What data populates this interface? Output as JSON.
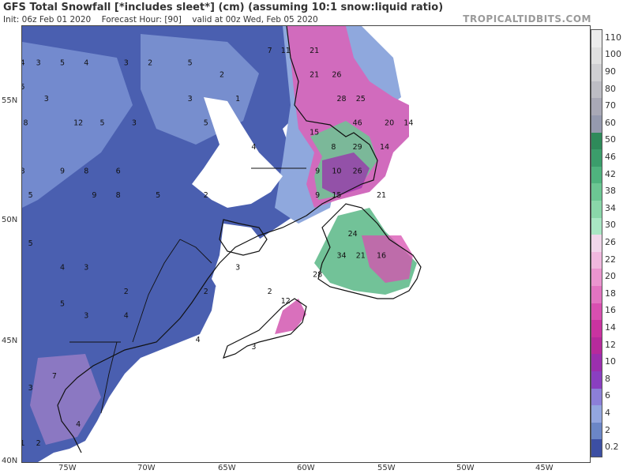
{
  "header": {
    "title": "GFS Total Snowfall [*includes sleet*] (cm) (assuming 10:1 snow:liquid ratio)",
    "init": "Init: 06z Feb 01 2020",
    "forecast_hour": "Forecast Hour: [90]",
    "valid": "valid at 00z Wed, Feb 05 2020",
    "brand": "TROPICALTIDBITS.COM"
  },
  "axes": {
    "lat_labels": [
      "55N",
      "50N",
      "45N",
      "40N"
    ],
    "lon_labels": [
      "75W",
      "70W",
      "65W",
      "60W",
      "55W",
      "50W",
      "45W"
    ]
  },
  "colorbar": {
    "labels": [
      "110",
      "100",
      "90",
      "80",
      "70",
      "60",
      "50",
      "46",
      "42",
      "38",
      "34",
      "30",
      "26",
      "22",
      "20",
      "18",
      "16",
      "14",
      "12",
      "10",
      "8",
      "6",
      "4",
      "2",
      "0.2"
    ],
    "colors": [
      "#ececec",
      "#e0e0e0",
      "#cfcfd2",
      "#bdbdc4",
      "#a9a9b6",
      "#959aae",
      "#2e8a5a",
      "#3b9d6b",
      "#4fb37e",
      "#6cc693",
      "#8ad6a9",
      "#a9e6c3",
      "#f1d6ea",
      "#f0b8de",
      "#ea95cf",
      "#e274c1",
      "#d84fb0",
      "#c933a0",
      "#b62a9c",
      "#9b2fae",
      "#8a3fc0",
      "#8c7fd8",
      "#93a6df",
      "#6b86c6",
      "#3c4fa3"
    ]
  },
  "map_numbers": [
    {
      "v": "4",
      "lon": -77.5,
      "lat": 56.5
    },
    {
      "v": "3",
      "lon": -76.5,
      "lat": 56.5
    },
    {
      "v": "5",
      "lon": -75,
      "lat": 56.5
    },
    {
      "v": "4",
      "lon": -73.5,
      "lat": 56.5
    },
    {
      "v": "3",
      "lon": -71,
      "lat": 56.5
    },
    {
      "v": "2",
      "lon": -69.5,
      "lat": 56.5
    },
    {
      "v": "5",
      "lon": -67,
      "lat": 56.5
    },
    {
      "v": "2",
      "lon": -65,
      "lat": 56
    },
    {
      "v": "7",
      "lon": -62,
      "lat": 57
    },
    {
      "v": "11",
      "lon": -61,
      "lat": 57
    },
    {
      "v": "21",
      "lon": -59.2,
      "lat": 57
    },
    {
      "v": "21",
      "lon": -59.2,
      "lat": 56
    },
    {
      "v": "26",
      "lon": -57.8,
      "lat": 56
    },
    {
      "v": "28",
      "lon": -57.5,
      "lat": 55
    },
    {
      "v": "25",
      "lon": -56.3,
      "lat": 55
    },
    {
      "v": "46",
      "lon": -56.5,
      "lat": 54
    },
    {
      "v": "20",
      "lon": -54.5,
      "lat": 54
    },
    {
      "v": "14",
      "lon": -53.3,
      "lat": 54
    },
    {
      "v": "15",
      "lon": -59.2,
      "lat": 53.6
    },
    {
      "v": "29",
      "lon": -56.5,
      "lat": 53
    },
    {
      "v": "14",
      "lon": -54.8,
      "lat": 53
    },
    {
      "v": "8",
      "lon": -58,
      "lat": 53
    },
    {
      "v": "9",
      "lon": -59,
      "lat": 52
    },
    {
      "v": "10",
      "lon": -57.8,
      "lat": 52
    },
    {
      "v": "26",
      "lon": -56.5,
      "lat": 52
    },
    {
      "v": "9",
      "lon": -59,
      "lat": 51
    },
    {
      "v": "15",
      "lon": -57.8,
      "lat": 51
    },
    {
      "v": "21",
      "lon": -55,
      "lat": 51
    },
    {
      "v": "24",
      "lon": -56.8,
      "lat": 49.4
    },
    {
      "v": "34",
      "lon": -57.5,
      "lat": 48.5
    },
    {
      "v": "21",
      "lon": -56.3,
      "lat": 48.5
    },
    {
      "v": "16",
      "lon": -55,
      "lat": 48.5
    },
    {
      "v": "28",
      "lon": -59,
      "lat": 47.7
    },
    {
      "v": "5",
      "lon": -77.5,
      "lat": 55.5
    },
    {
      "v": "3",
      "lon": -76,
      "lat": 55
    },
    {
      "v": "12",
      "lon": -74,
      "lat": 54
    },
    {
      "v": "5",
      "lon": -72.5,
      "lat": 54
    },
    {
      "v": "3",
      "lon": -70.5,
      "lat": 54
    },
    {
      "v": "8",
      "lon": -77.3,
      "lat": 54
    },
    {
      "v": "8",
      "lon": -77.5,
      "lat": 52
    },
    {
      "v": "9",
      "lon": -75,
      "lat": 52
    },
    {
      "v": "8",
      "lon": -73.5,
      "lat": 52
    },
    {
      "v": "6",
      "lon": -71.5,
      "lat": 52
    },
    {
      "v": "5",
      "lon": -77,
      "lat": 51
    },
    {
      "v": "9",
      "lon": -73,
      "lat": 51
    },
    {
      "v": "8",
      "lon": -71.5,
      "lat": 51
    },
    {
      "v": "5",
      "lon": -69,
      "lat": 51
    },
    {
      "v": "5",
      "lon": -77,
      "lat": 49
    },
    {
      "v": "4",
      "lon": -75,
      "lat": 48
    },
    {
      "v": "3",
      "lon": -73.5,
      "lat": 48
    },
    {
      "v": "2",
      "lon": -71,
      "lat": 47
    },
    {
      "v": "5",
      "lon": -75,
      "lat": 46.5
    },
    {
      "v": "3",
      "lon": -73.5,
      "lat": 46
    },
    {
      "v": "4",
      "lon": -71,
      "lat": 46
    },
    {
      "v": "7",
      "lon": -75.5,
      "lat": 43.5
    },
    {
      "v": "3",
      "lon": -77,
      "lat": 43
    },
    {
      "v": "4",
      "lon": -74,
      "lat": 41.5
    },
    {
      "v": "1",
      "lon": -77.5,
      "lat": 40.7
    },
    {
      "v": "2",
      "lon": -76.5,
      "lat": 40.7
    },
    {
      "v": "5",
      "lon": -66,
      "lat": 54
    },
    {
      "v": "3",
      "lon": -67,
      "lat": 55
    },
    {
      "v": "1",
      "lon": -64,
      "lat": 55
    },
    {
      "v": "4",
      "lon": -63,
      "lat": 53
    },
    {
      "v": "2",
      "lon": -66,
      "lat": 51
    },
    {
      "v": "3",
      "lon": -64,
      "lat": 48
    },
    {
      "v": "4",
      "lon": -66.5,
      "lat": 45
    },
    {
      "v": "2",
      "lon": -66,
      "lat": 47
    },
    {
      "v": "3",
      "lon": -63,
      "lat": 44.7
    },
    {
      "v": "12",
      "lon": -61,
      "lat": 46.6
    },
    {
      "v": "2",
      "lon": -62,
      "lat": 47
    }
  ]
}
